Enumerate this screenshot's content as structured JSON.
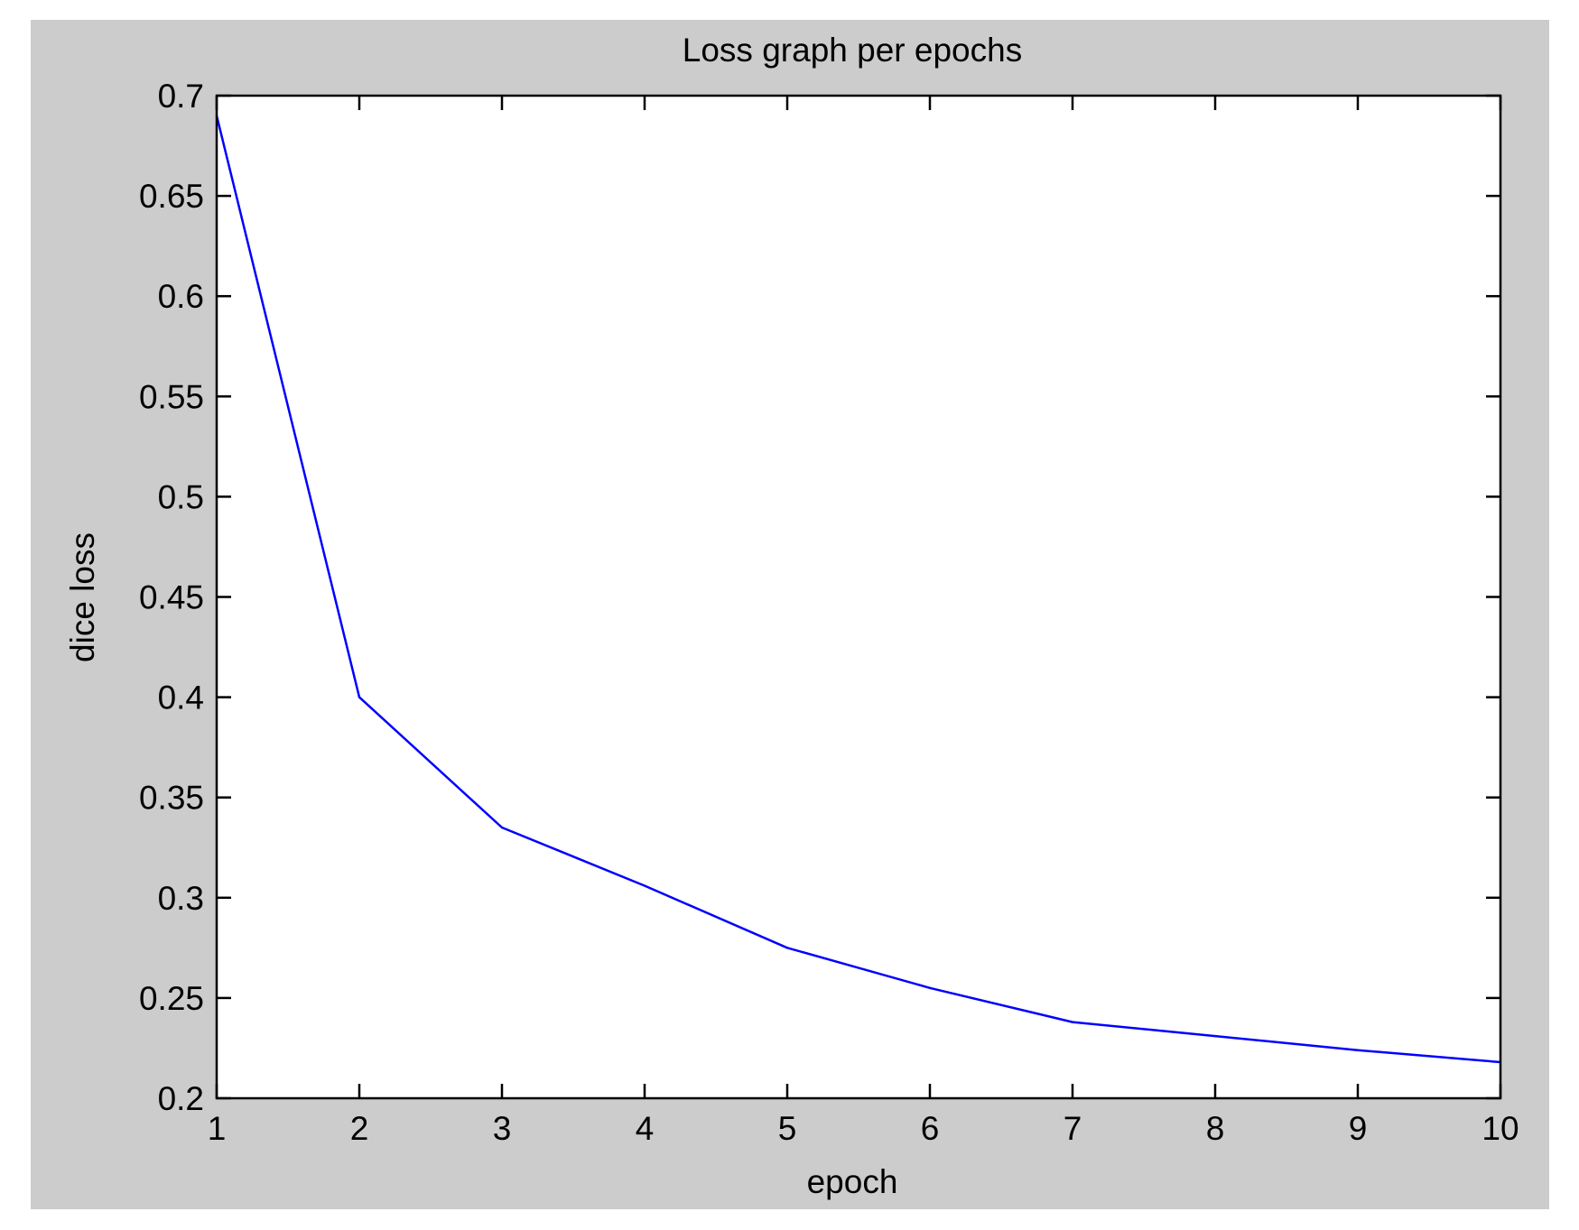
{
  "colors": {
    "figure_background": "#cccccc",
    "axes_background": "#ffffff",
    "axes_color": "#000000",
    "series_color": "#0000ff"
  },
  "chart_data": {
    "type": "line",
    "title": "Loss graph per epochs",
    "xlabel": "epoch",
    "ylabel": "dice loss",
    "xlim": [
      1,
      10
    ],
    "ylim": [
      0.2,
      0.7
    ],
    "xticks": [
      1,
      2,
      3,
      4,
      5,
      6,
      7,
      8,
      9,
      10
    ],
    "yticks": [
      0.2,
      0.25,
      0.3,
      0.35,
      0.4,
      0.45,
      0.5,
      0.55,
      0.6,
      0.65,
      0.7
    ],
    "x_tick_labels": [
      "1",
      "2",
      "3",
      "4",
      "5",
      "6",
      "7",
      "8",
      "9",
      "10"
    ],
    "y_tick_labels": [
      "0.2",
      "0.25",
      "0.3",
      "0.35",
      "0.4",
      "0.45",
      "0.5",
      "0.55",
      "0.6",
      "0.65",
      "0.7"
    ],
    "grid": false,
    "legend": "none",
    "series": [
      {
        "x": [
          1,
          2,
          3,
          4,
          5,
          6,
          7,
          8,
          9,
          10
        ],
        "y": [
          0.69,
          0.4,
          0.335,
          0.306,
          0.275,
          0.255,
          0.238,
          0.231,
          0.224,
          0.218
        ]
      }
    ]
  }
}
